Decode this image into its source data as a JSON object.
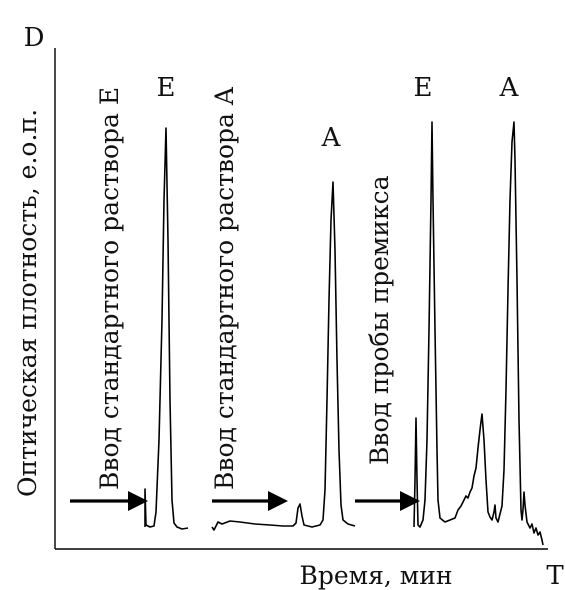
{
  "chart_data": {
    "type": "line",
    "corner_y_label": "D",
    "corner_x_label": "T",
    "ylabel": "Оптическая плотность, е.о.п.",
    "xlabel": "Время, мин",
    "grid": false,
    "legend": "none",
    "line_color": "#000000",
    "annotations": [
      {
        "id": "inject-std-e",
        "text": "Ввод стандартного раствора E"
      },
      {
        "id": "inject-std-a",
        "text": "Ввод стандартного раствора A"
      },
      {
        "id": "inject-premix",
        "text": "Ввод пробы премикса"
      }
    ],
    "segments": [
      {
        "id": "std-e",
        "peak_labels": [
          "E"
        ]
      },
      {
        "id": "std-a",
        "peak_labels": [
          "A"
        ]
      },
      {
        "id": "premix",
        "peak_labels": [
          "E",
          "A"
        ]
      }
    ]
  }
}
